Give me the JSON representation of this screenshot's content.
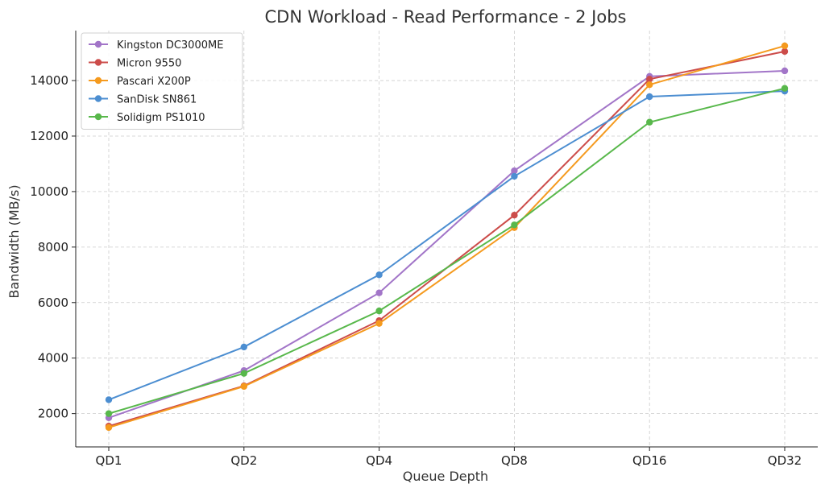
{
  "chart_data": {
    "type": "line",
    "title": "CDN Workload - Read Performance - 2 Jobs",
    "xlabel": "Queue Depth",
    "ylabel": "Bandwidth (MB/s)",
    "categories": [
      "QD1",
      "QD2",
      "QD4",
      "QD8",
      "QD16",
      "QD32"
    ],
    "ylim": [
      800,
      15800
    ],
    "yticks": [
      2000,
      4000,
      6000,
      8000,
      10000,
      12000,
      14000
    ],
    "grid": true,
    "legend_position": "top-left",
    "series": [
      {
        "name": "Kingston DC3000ME",
        "color": "#a275c8",
        "values": [
          1850,
          3550,
          6350,
          10750,
          14150,
          14350
        ]
      },
      {
        "name": "Micron 9550",
        "color": "#cc4c4a",
        "values": [
          1550,
          3000,
          5350,
          9150,
          14050,
          15050
        ]
      },
      {
        "name": "Pascari X200P",
        "color": "#f59a1e",
        "values": [
          1500,
          2980,
          5250,
          8700,
          13850,
          15250
        ]
      },
      {
        "name": "SanDisk SN861",
        "color": "#4c8ed1",
        "values": [
          2500,
          4400,
          7000,
          10550,
          13420,
          13620
        ]
      },
      {
        "name": "Solidigm PS1010",
        "color": "#58b84b",
        "values": [
          2000,
          3450,
          5700,
          8800,
          12500,
          13720
        ]
      }
    ]
  }
}
